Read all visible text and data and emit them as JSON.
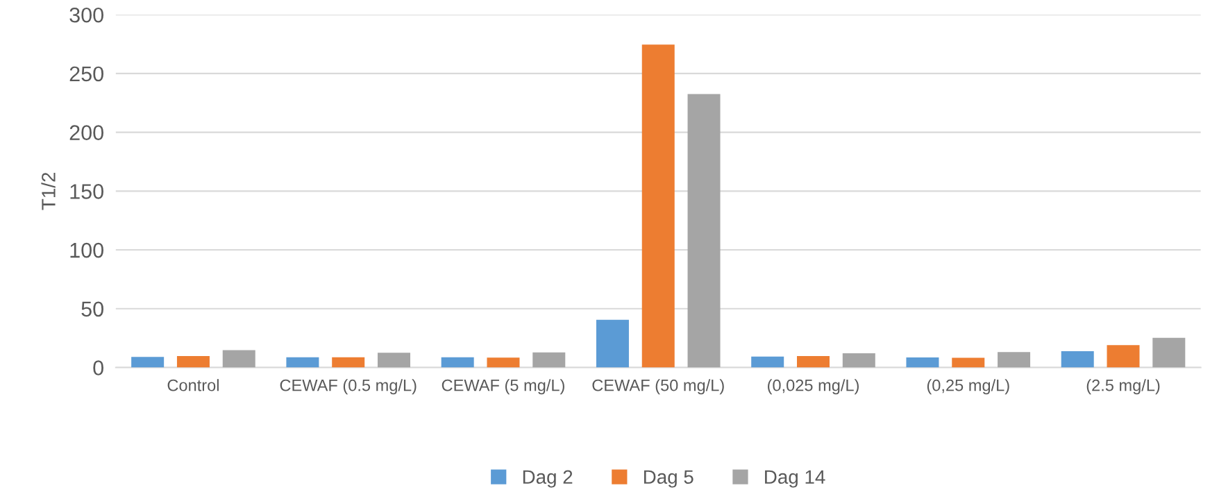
{
  "chart_data": {
    "type": "bar",
    "ylabel": "T1/2",
    "categories": [
      "Control",
      "CEWAF (0.5 mg/L)",
      "CEWAF (5 mg/L)",
      "CEWAF (50 mg/L)",
      "(0,025 mg/L)",
      "(0,25 mg/L)",
      "(2.5 mg/L)"
    ],
    "series": [
      {
        "name": "Dag 2",
        "color": "#5b9bd5",
        "values": [
          9,
          8.7,
          8.7,
          40.6,
          9.3,
          8.6,
          13.8
        ]
      },
      {
        "name": "Dag 5",
        "color": "#ed7d31",
        "values": [
          9.7,
          8.7,
          8.4,
          274.6,
          9.7,
          8.3,
          19
        ]
      },
      {
        "name": "Dag 14",
        "color": "#a5a5a5",
        "values": [
          14.8,
          12.6,
          12.9,
          232.5,
          12.1,
          13.1,
          25.2
        ]
      }
    ],
    "ylim": [
      0,
      300
    ],
    "yticks": [
      0,
      50,
      100,
      150,
      200,
      250,
      300
    ],
    "grid": "y",
    "legend": "bottom"
  }
}
